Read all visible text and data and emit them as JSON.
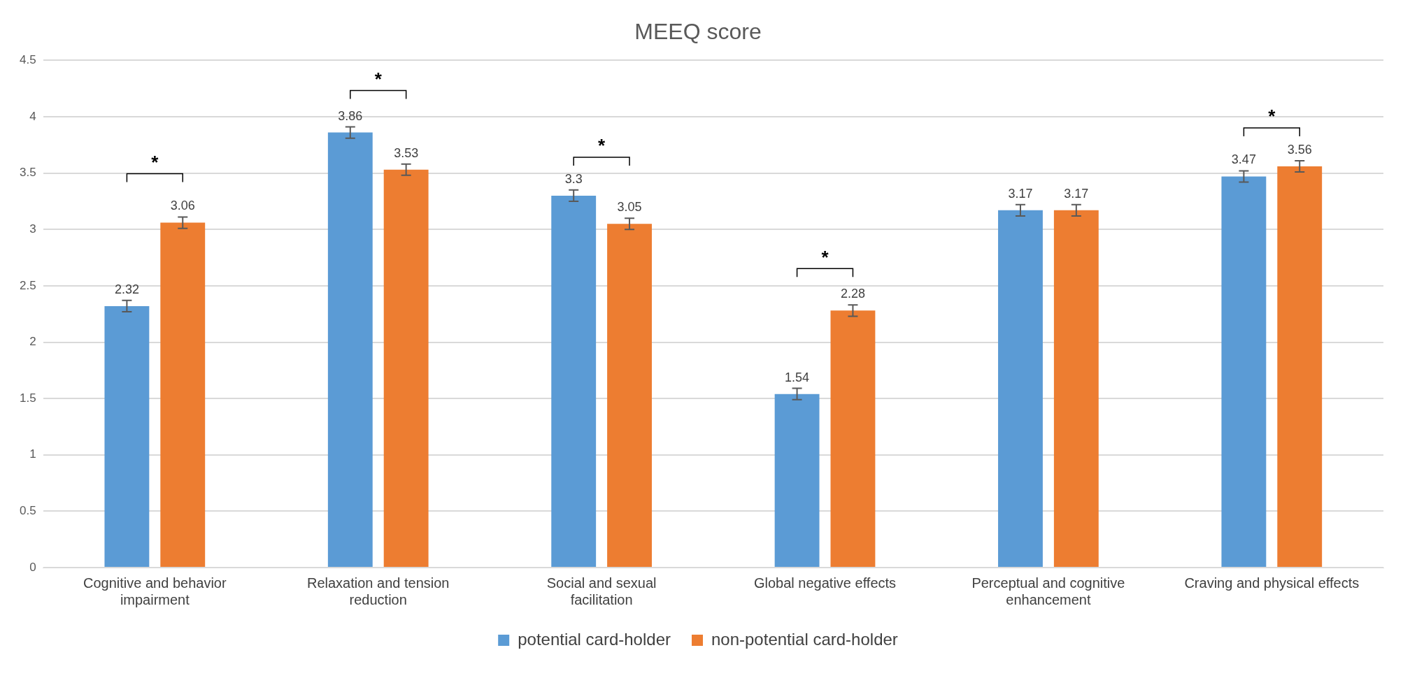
{
  "chart_data": {
    "type": "bar",
    "title": "MEEQ score",
    "categories": [
      "Cognitive and behavior impairment",
      "Relaxation and tension reduction",
      "Social and sexual facilitation",
      "Global negative effects",
      "Perceptual and cognitive enhancement",
      "Craving and physical effects"
    ],
    "series": [
      {
        "name": "potential card-holder",
        "color": "#5b9bd5",
        "values": [
          2.32,
          3.86,
          3.3,
          1.54,
          3.17,
          3.47
        ],
        "errors": [
          0.05,
          0.05,
          0.05,
          0.05,
          0.05,
          0.05
        ]
      },
      {
        "name": "non-potential card-holder",
        "color": "#ed7d31",
        "values": [
          3.06,
          3.53,
          3.05,
          2.28,
          3.17,
          3.56
        ],
        "errors": [
          0.05,
          0.05,
          0.05,
          0.05,
          0.05,
          0.05
        ]
      }
    ],
    "ylim": [
      0,
      4.5
    ],
    "yticks": [
      0,
      0.5,
      1,
      1.5,
      2,
      2.5,
      3,
      3.5,
      4,
      4.5
    ],
    "grid": "y",
    "legend": "bottom",
    "data_labels": true,
    "annotations": [
      "*",
      "*",
      "*",
      "*",
      "*"
    ]
  }
}
